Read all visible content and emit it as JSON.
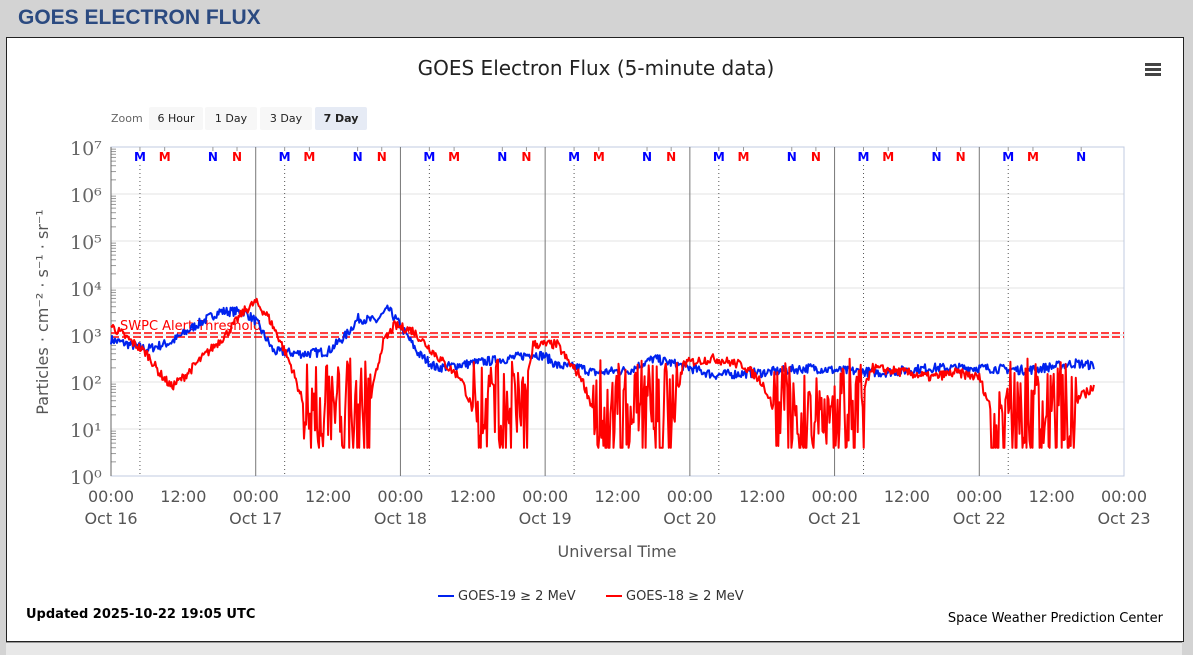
{
  "page_title": "GOES ELECTRON FLUX",
  "menu_icon": "hamburger-menu-icon",
  "zoom": {
    "label": "Zoom",
    "buttons": [
      "6 Hour",
      "1 Day",
      "3 Day",
      "7 Day"
    ],
    "selected": "7 Day"
  },
  "updated": "Updated 2025-10-22 19:05 UTC",
  "credit": "Space Weather Prediction Center",
  "chart_data": {
    "type": "line",
    "title": "GOES Electron Flux (5-minute data)",
    "xlabel": "Universal Time",
    "ylabel": "Particles · cm⁻² · s⁻¹ · sr⁻¹",
    "y_scale": "log",
    "ylim_log10": [
      0,
      7
    ],
    "y_ticks": [
      "10⁰",
      "10¹",
      "10²",
      "10³",
      "10⁴",
      "10⁵",
      "10⁶",
      "10⁷"
    ],
    "xlim_hours": [
      0,
      168
    ],
    "x_ticks": [
      {
        "time": "00:00",
        "date": "Oct 16"
      },
      {
        "time": "12:00",
        "date": ""
      },
      {
        "time": "00:00",
        "date": "Oct 17"
      },
      {
        "time": "12:00",
        "date": ""
      },
      {
        "time": "00:00",
        "date": "Oct 18"
      },
      {
        "time": "12:00",
        "date": ""
      },
      {
        "time": "00:00",
        "date": "Oct 19"
      },
      {
        "time": "12:00",
        "date": ""
      },
      {
        "time": "00:00",
        "date": "Oct 20"
      },
      {
        "time": "12:00",
        "date": ""
      },
      {
        "time": "00:00",
        "date": "Oct 21"
      },
      {
        "time": "12:00",
        "date": ""
      },
      {
        "time": "00:00",
        "date": "Oct 22"
      },
      {
        "time": "12:00",
        "date": ""
      },
      {
        "time": "00:00",
        "date": "Oct 23"
      }
    ],
    "threshold": {
      "label": "SWPC Alert Threshold",
      "value": 1000,
      "color": "#ff0000"
    },
    "markers_hours_of_day": [
      {
        "label": "M",
        "color": "#0000ff",
        "hour": 4.8
      },
      {
        "label": "M",
        "color": "#ff0000",
        "hour": 8.9
      },
      {
        "label": "N",
        "color": "#0000ff",
        "hour": 16.9
      },
      {
        "label": "N",
        "color": "#ff0000",
        "hour": 20.9
      }
    ],
    "series": [
      {
        "name": "GOES-19 ≥ 2 MeV",
        "color": "#0022ee",
        "keyframes_hours_log10": [
          [
            0,
            2.9
          ],
          [
            3,
            2.8
          ],
          [
            6,
            2.7
          ],
          [
            10,
            2.85
          ],
          [
            14,
            3.2
          ],
          [
            18,
            3.5
          ],
          [
            22,
            3.5
          ],
          [
            24,
            3.3
          ],
          [
            27,
            2.65
          ],
          [
            32,
            2.6
          ],
          [
            36,
            2.65
          ],
          [
            39,
            3.0
          ],
          [
            41,
            3.35
          ],
          [
            44,
            3.3
          ],
          [
            46,
            3.55
          ],
          [
            48,
            3.2
          ],
          [
            51,
            2.6
          ],
          [
            54,
            2.3
          ],
          [
            60,
            2.4
          ],
          [
            66,
            2.5
          ],
          [
            70,
            2.6
          ],
          [
            72,
            2.55
          ],
          [
            74,
            2.35
          ],
          [
            78,
            2.3
          ],
          [
            80,
            2.2
          ],
          [
            86,
            2.25
          ],
          [
            90,
            2.5
          ],
          [
            96,
            2.3
          ],
          [
            100,
            2.15
          ],
          [
            108,
            2.2
          ],
          [
            116,
            2.3
          ],
          [
            120,
            2.25
          ],
          [
            128,
            2.2
          ],
          [
            136,
            2.3
          ],
          [
            144,
            2.3
          ],
          [
            152,
            2.25
          ],
          [
            160,
            2.4
          ],
          [
            163,
            2.35
          ]
        ],
        "noise": 0.1
      },
      {
        "name": "GOES-18 ≥ 2 MeV",
        "color": "#ff0000",
        "keyframes_hours_log10": [
          [
            0,
            3.2
          ],
          [
            3,
            2.9
          ],
          [
            6,
            2.6
          ],
          [
            8,
            2.2
          ],
          [
            10,
            1.9
          ],
          [
            12,
            2.1
          ],
          [
            15,
            2.5
          ],
          [
            19,
            3.0
          ],
          [
            22,
            3.5
          ],
          [
            24,
            3.7
          ],
          [
            26,
            3.4
          ],
          [
            28,
            2.9
          ],
          [
            30,
            2.3
          ],
          [
            32,
            1.5
          ],
          [
            43,
            1.6
          ],
          [
            45,
            2.8
          ],
          [
            47,
            3.2
          ],
          [
            50,
            3.1
          ],
          [
            53,
            2.7
          ],
          [
            56,
            2.3
          ],
          [
            58,
            2.1
          ],
          [
            60,
            1.4
          ],
          [
            68,
            1.3
          ],
          [
            70,
            2.8
          ],
          [
            74,
            2.8
          ],
          [
            76,
            2.4
          ],
          [
            78,
            2.1
          ],
          [
            80,
            1.4
          ],
          [
            93,
            1.3
          ],
          [
            95,
            2.4
          ],
          [
            100,
            2.5
          ],
          [
            105,
            2.35
          ],
          [
            108,
            2.0
          ],
          [
            110,
            1.4
          ],
          [
            124,
            1.3
          ],
          [
            126,
            2.3
          ],
          [
            132,
            2.2
          ],
          [
            136,
            2.1
          ],
          [
            140,
            2.2
          ],
          [
            144,
            2.1
          ],
          [
            146,
            1.4
          ],
          [
            159,
            1.5
          ],
          [
            163,
            1.9
          ]
        ],
        "noisy_dropout_ranges_hours": [
          [
            32,
            43
          ],
          [
            60,
            69
          ],
          [
            80,
            94
          ],
          [
            110,
            125
          ],
          [
            146,
            160
          ]
        ],
        "noise": 0.1
      }
    ],
    "legend_position": "bottom-center"
  }
}
